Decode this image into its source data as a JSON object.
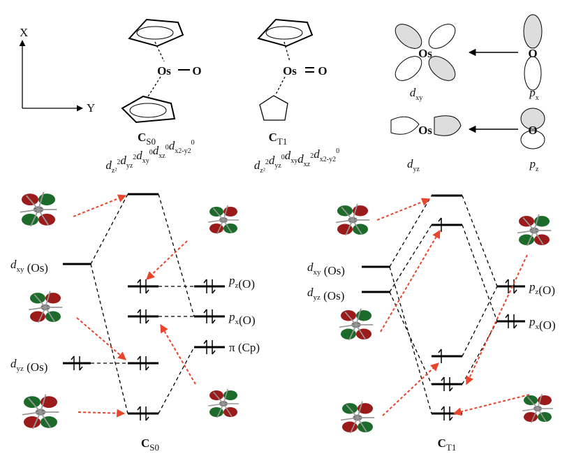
{
  "axis_labels": [
    "X",
    "Y"
  ],
  "structures": [
    {
      "atoms": [
        "Os",
        "O"
      ],
      "name": [
        {
          "t": "C",
          "sub": "S0"
        }
      ],
      "configuration": [
        {
          "t": "d",
          "sub": "z²",
          "sup": "2"
        },
        {
          "t": "d",
          "sub": "yz",
          "sup": "2"
        },
        {
          "t": "d",
          "sub": "xy",
          "sup": "0"
        },
        {
          "t": "d",
          "sub": "xz",
          "sup": "0"
        },
        {
          "t": "d",
          "sub": "x2-y2",
          "sup": "0"
        }
      ]
    },
    {
      "atoms": [
        "Os",
        "O"
      ],
      "name": [
        {
          "t": "C",
          "sub": "T1"
        }
      ],
      "configuration": [
        {
          "t": "d",
          "sub": "z²",
          "sup": "2"
        },
        {
          "t": "d",
          "sub": "yz",
          "sup": "0"
        },
        {
          "t": "d",
          "sub": "xy"
        },
        {
          "t": "d",
          "sub": "xz",
          "sup": "2"
        },
        {
          "t": "d",
          "sub": "x2-y2",
          "sup": "0"
        }
      ]
    }
  ],
  "orbital_sketches": [
    {
      "atoms": [
        "Os",
        "O"
      ],
      "labels": [
        [
          {
            "t": "d",
            "sub": "xy"
          }
        ],
        [
          {
            "t": "p",
            "sub": "x"
          }
        ]
      ]
    },
    {
      "atoms": [
        "Os",
        "O"
      ],
      "labels": [
        [
          {
            "t": "d",
            "sub": "yz"
          }
        ],
        [
          {
            "t": "p",
            "sub": "z"
          }
        ]
      ]
    }
  ],
  "diagrams": [
    {
      "name": [
        {
          "t": "C",
          "sub": "S0"
        }
      ],
      "level_labels": [
        [
          {
            "t": "d",
            "sub": "xy"
          },
          {
            "t": " (Os)"
          }
        ],
        [
          {
            "t": "d",
            "sub": "yz"
          },
          {
            "t": " (Os)"
          }
        ],
        [
          {
            "t": "p",
            "sub": "z"
          },
          {
            "t": "(O)"
          }
        ],
        [
          {
            "t": "p",
            "sub": "x"
          },
          {
            "t": "(O)"
          }
        ],
        [
          {
            "t": "π (Cp)"
          }
        ]
      ]
    },
    {
      "name": [
        {
          "t": "C",
          "sub": "T1"
        }
      ],
      "level_labels": [
        [
          {
            "t": "d",
            "sub": "xy"
          },
          {
            "t": " (Os)"
          }
        ],
        [
          {
            "t": "d",
            "sub": "yz"
          },
          {
            "t": " (Os)"
          }
        ],
        [
          {
            "t": "p",
            "sub": "z"
          },
          {
            "t": "(O)"
          }
        ],
        [
          {
            "t": "p",
            "sub": "x"
          },
          {
            "t": "(O)"
          }
        ]
      ]
    }
  ]
}
